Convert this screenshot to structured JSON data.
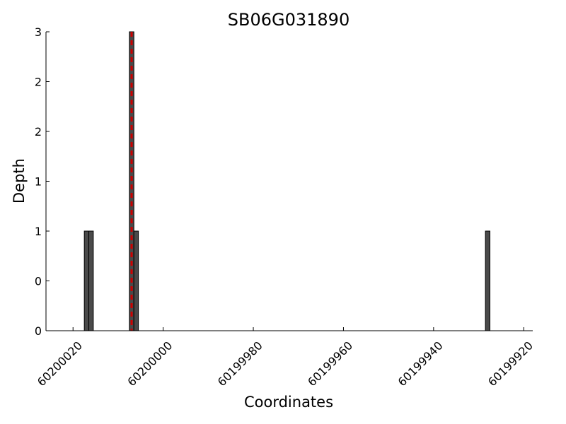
{
  "chart_data": {
    "type": "bar",
    "title": "SB06G031890",
    "xlabel": "Coordinates",
    "ylabel": "Depth",
    "x_axis_reversed": true,
    "xlim": [
      60200026,
      60199918
    ],
    "ylim": [
      0,
      3
    ],
    "xticks": [
      60200020,
      60200000,
      60199980,
      60199960,
      60199940,
      60199920
    ],
    "xtick_labels": [
      "60200020",
      "60200000",
      "60199980",
      "60199960",
      "60199940",
      "60199920"
    ],
    "yticks": [
      0,
      0.5,
      1,
      1.5,
      2,
      2.5,
      3
    ],
    "ytick_labels": [
      "0",
      "0",
      "1",
      "1",
      "2",
      "2",
      "3"
    ],
    "bin_width": 1,
    "bars": [
      {
        "x": 60200017,
        "value": 1
      },
      {
        "x": 60200016,
        "value": 1
      },
      {
        "x": 60200007,
        "value": 3
      },
      {
        "x": 60200006,
        "value": 1
      },
      {
        "x": 60199928,
        "value": 1
      }
    ],
    "marker_line": {
      "x": 60200007,
      "color": "#cc0000",
      "style": "dashed"
    },
    "bar_color": "#4a4a4a",
    "bar_edge_color": "#000000",
    "grid": false,
    "legend": "none"
  }
}
